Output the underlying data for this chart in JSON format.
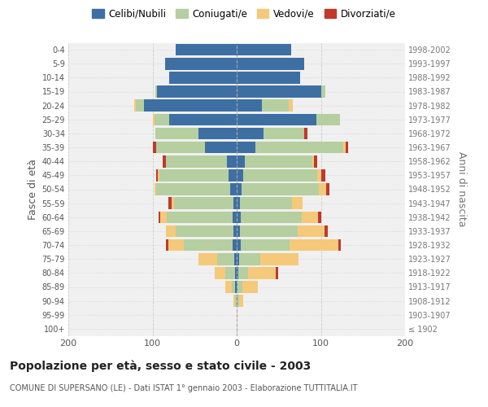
{
  "age_groups": [
    "100+",
    "95-99",
    "90-94",
    "85-89",
    "80-84",
    "75-79",
    "70-74",
    "65-69",
    "60-64",
    "55-59",
    "50-54",
    "45-49",
    "40-44",
    "35-39",
    "30-34",
    "25-29",
    "20-24",
    "15-19",
    "10-14",
    "5-9",
    "0-4"
  ],
  "birth_years": [
    "≤ 1902",
    "1903-1907",
    "1908-1912",
    "1913-1917",
    "1918-1922",
    "1923-1927",
    "1928-1932",
    "1933-1937",
    "1938-1942",
    "1943-1947",
    "1948-1952",
    "1953-1957",
    "1958-1962",
    "1963-1967",
    "1968-1972",
    "1973-1977",
    "1978-1982",
    "1983-1987",
    "1988-1992",
    "1993-1997",
    "1998-2002"
  ],
  "males": {
    "celibi": [
      0,
      0,
      0,
      2,
      2,
      3,
      5,
      4,
      5,
      4,
      8,
      10,
      12,
      38,
      45,
      80,
      110,
      95,
      80,
      85,
      72
    ],
    "coniugati": [
      0,
      0,
      2,
      4,
      12,
      20,
      58,
      68,
      78,
      70,
      88,
      82,
      72,
      58,
      52,
      18,
      10,
      2,
      0,
      0,
      0
    ],
    "vedovi": [
      0,
      0,
      2,
      8,
      12,
      22,
      18,
      12,
      8,
      3,
      2,
      2,
      0,
      0,
      0,
      2,
      2,
      0,
      0,
      0,
      0
    ],
    "divorziati": [
      0,
      0,
      0,
      0,
      0,
      0,
      3,
      0,
      2,
      4,
      0,
      2,
      4,
      4,
      0,
      0,
      0,
      0,
      0,
      0,
      0
    ]
  },
  "females": {
    "nubili": [
      0,
      0,
      1,
      1,
      2,
      3,
      5,
      4,
      5,
      4,
      6,
      8,
      10,
      22,
      32,
      95,
      30,
      100,
      75,
      80,
      65
    ],
    "coniugate": [
      0,
      0,
      2,
      6,
      12,
      25,
      58,
      68,
      72,
      62,
      92,
      88,
      80,
      105,
      48,
      28,
      32,
      5,
      0,
      0,
      0
    ],
    "vedove": [
      0,
      1,
      5,
      18,
      32,
      45,
      58,
      32,
      20,
      12,
      8,
      4,
      2,
      2,
      0,
      0,
      5,
      0,
      0,
      0,
      0
    ],
    "divorziate": [
      0,
      0,
      0,
      0,
      3,
      0,
      3,
      4,
      3,
      0,
      4,
      5,
      4,
      3,
      4,
      0,
      0,
      0,
      0,
      0,
      0
    ]
  },
  "colors": {
    "celibi": "#3e6fa3",
    "coniugati": "#b5cfa0",
    "vedovi": "#f5c97a",
    "divorziati": "#c0392b"
  },
  "xlim": 200,
  "title": "Popolazione per età, sesso e stato civile - 2003",
  "subtitle": "COMUNE DI SUPERSANO (LE) - Dati ISTAT 1° gennaio 2003 - Elaborazione TUTTITALIA.IT",
  "ylabel_left": "Fasce di età",
  "ylabel_right": "Anni di nascita",
  "bg_color": "#f0f0f0",
  "grid_color": "#cccccc"
}
